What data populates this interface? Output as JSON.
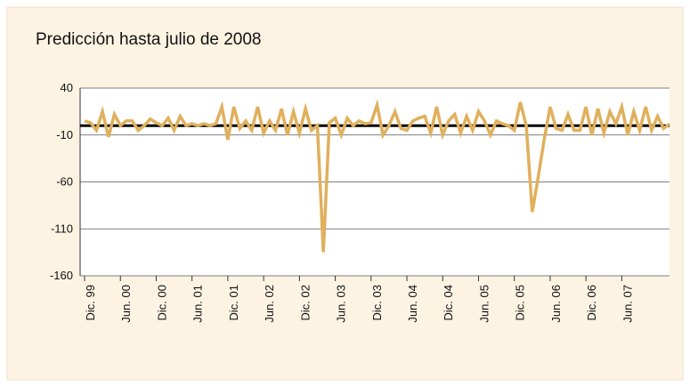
{
  "chart_data": {
    "type": "line",
    "title": "Predicción hasta julio de 2008",
    "categories": [
      "Dic. 99",
      null,
      null,
      null,
      null,
      null,
      "Jun. 00",
      null,
      null,
      null,
      null,
      null,
      "Dic. 00",
      null,
      null,
      null,
      null,
      null,
      "Jun. 01",
      null,
      null,
      null,
      null,
      null,
      "Dic. 01",
      null,
      null,
      null,
      null,
      null,
      "Jun. 02",
      null,
      null,
      null,
      null,
      null,
      "Dic. 02",
      null,
      null,
      null,
      null,
      null,
      "Jun. 03",
      null,
      null,
      null,
      null,
      null,
      "Dic. 03",
      null,
      null,
      null,
      null,
      null,
      "Jun. 04",
      null,
      null,
      null,
      null,
      null,
      "Dic. 04",
      null,
      null,
      null,
      null,
      null,
      "Jun. 05",
      null,
      null,
      null,
      null,
      null,
      "Dic. 05",
      null,
      null,
      null,
      null,
      null,
      "Jun. 06",
      null,
      null,
      null,
      null,
      null,
      "Dic. 06",
      null,
      null,
      null,
      null,
      null,
      "Jun. 07",
      null,
      null,
      null,
      null,
      null,
      null,
      null,
      null
    ],
    "values": [
      5,
      3,
      -5,
      15,
      -12,
      12,
      0,
      5,
      5,
      -5,
      0,
      7,
      3,
      0,
      8,
      -5,
      10,
      0,
      2,
      0,
      2,
      0,
      2,
      20,
      -15,
      20,
      -3,
      5,
      -5,
      20,
      -8,
      5,
      -5,
      18,
      -10,
      15,
      -8,
      18,
      -5,
      0,
      -135,
      3,
      8,
      -10,
      8,
      0,
      5,
      2,
      3,
      22,
      -10,
      0,
      15,
      -3,
      -5,
      5,
      8,
      10,
      -8,
      20,
      -10,
      5,
      12,
      -8,
      10,
      -5,
      15,
      5,
      -10,
      5,
      2,
      0,
      -5,
      25,
      0,
      -92,
      -55,
      -15,
      20,
      -3,
      -5,
      12,
      -5,
      -5,
      20,
      -10,
      18,
      -8,
      15,
      2,
      20,
      -10,
      15,
      -5,
      20,
      -5,
      10,
      -3,
      2
    ],
    "color": "#e0b05c",
    "ylim": [
      -160,
      40
    ],
    "yticks": [
      40,
      -10,
      -60,
      -110,
      -160
    ],
    "grid": true
  }
}
